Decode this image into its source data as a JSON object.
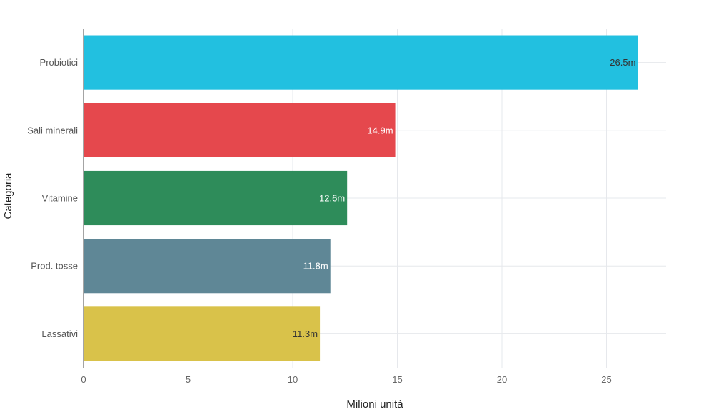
{
  "chart_data": {
    "type": "bar",
    "orientation": "horizontal",
    "title": "",
    "xlabel": "Milioni unità",
    "ylabel": "Categoria",
    "xlim": [
      0,
      28
    ],
    "xticks": [
      0,
      5,
      10,
      15,
      20,
      25
    ],
    "grid": true,
    "categories": [
      "Probiotici",
      "Sali minerali",
      "Vitamine",
      "Prod. tosse",
      "Lassativi"
    ],
    "values": [
      26.5,
      14.9,
      12.6,
      11.8,
      11.3
    ],
    "data_labels": [
      "26.5m",
      "14.9m",
      "12.6m",
      "11.8m",
      "11.3m"
    ],
    "colors": [
      "#22c0e0",
      "#e5484d",
      "#2e8c5a",
      "#5f8796",
      "#d9c24a"
    ],
    "label_colors": [
      "#333333",
      "#ffffff",
      "#ffffff",
      "#ffffff",
      "#333333"
    ]
  }
}
